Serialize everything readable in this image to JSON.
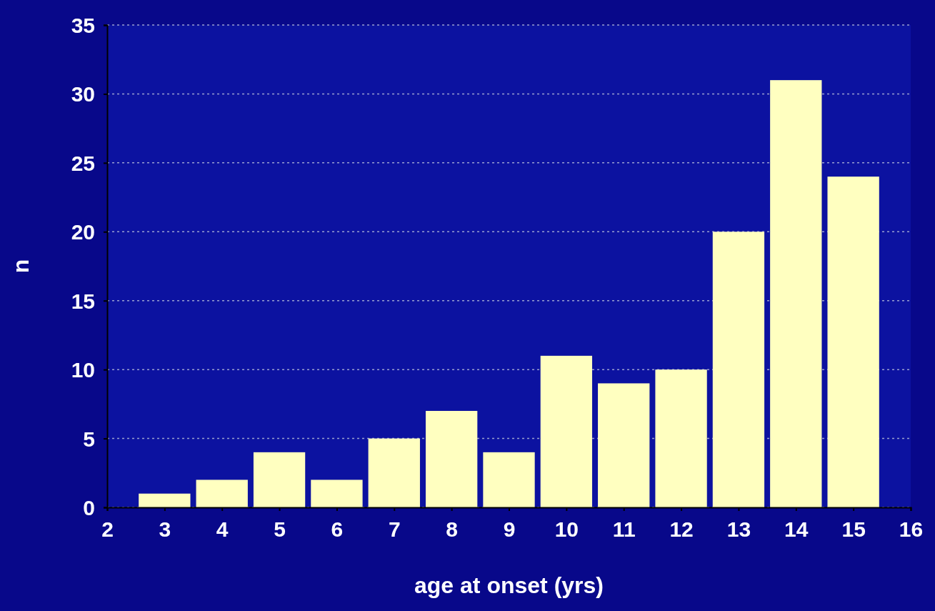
{
  "chart_data": {
    "type": "bar",
    "xlabel": "age at onset (yrs)",
    "ylabel": "n",
    "x": [
      3,
      4,
      5,
      6,
      7,
      8,
      9,
      10,
      11,
      12,
      13,
      14,
      15
    ],
    "values": [
      1,
      2,
      4,
      2,
      5,
      7,
      4,
      11,
      9,
      10,
      20,
      31,
      24
    ],
    "color": "#ffffc0",
    "xlim": [
      2,
      16
    ],
    "xticks": [
      2,
      3,
      4,
      5,
      6,
      7,
      8,
      9,
      10,
      11,
      12,
      13,
      14,
      15,
      16
    ],
    "ylim": [
      0,
      35
    ],
    "yticks": [
      0,
      5,
      10,
      15,
      20,
      25,
      30,
      35
    ],
    "grid": "y"
  }
}
